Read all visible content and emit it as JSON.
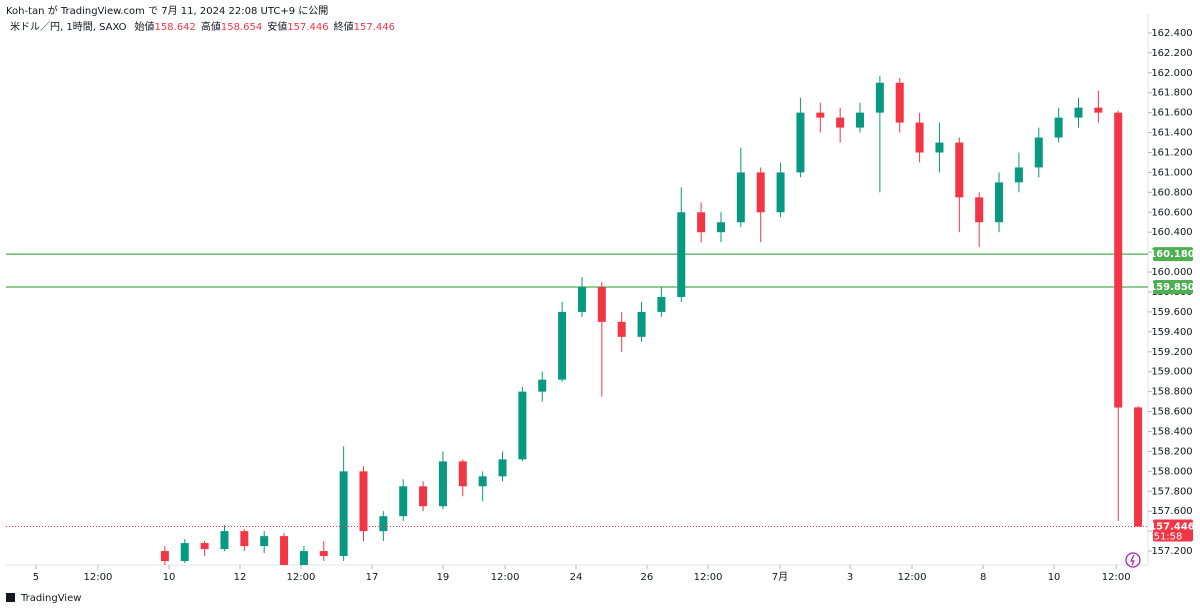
{
  "header": "Koh-tan が TradingView.com で 7月 11, 2024 22:08 UTC+9 に公開",
  "footer": "TradingView",
  "chart_data": {
    "type": "candlestick",
    "title": "米ドル／円, 1時間, SAXO",
    "legend_labels": [
      "始値",
      "高値",
      "安値",
      "終値"
    ],
    "up_color": "#089981",
    "down_color": "#f23645",
    "x": [
      8,
      9,
      10,
      11,
      12,
      13,
      14,
      15,
      16,
      17,
      18,
      19,
      20,
      21,
      22,
      23,
      24,
      25,
      26,
      27,
      28,
      29,
      30,
      31,
      32,
      33,
      34,
      35,
      36,
      37,
      38,
      39,
      40,
      41,
      42,
      43,
      44,
      45,
      46,
      47,
      48,
      49,
      50,
      51,
      52,
      53,
      54,
      55,
      56,
      57
    ],
    "open": [
      157.2,
      157.1,
      157.28,
      157.22,
      157.4,
      157.25,
      157.35,
      157.0,
      157.2,
      157.15,
      158.0,
      157.4,
      157.55,
      157.85,
      157.65,
      158.1,
      157.85,
      157.95,
      158.12,
      158.8,
      158.92,
      159.6,
      159.85,
      159.5,
      159.35,
      159.6,
      159.75,
      160.6,
      160.4,
      160.5,
      161.0,
      160.6,
      161.0,
      161.6,
      161.55,
      161.45,
      161.6,
      161.9,
      161.5,
      161.2,
      161.3,
      160.75,
      160.5,
      160.9,
      161.05,
      161.35,
      161.55,
      161.65,
      161.6,
      158.642
    ],
    "high": [
      157.25,
      157.32,
      157.3,
      157.46,
      157.42,
      157.4,
      157.38,
      157.25,
      157.3,
      158.25,
      158.05,
      157.6,
      157.92,
      157.9,
      158.2,
      158.12,
      158.0,
      158.2,
      158.85,
      159.0,
      159.7,
      159.95,
      159.9,
      159.6,
      159.7,
      159.85,
      160.85,
      160.7,
      160.6,
      161.25,
      161.05,
      161.1,
      161.75,
      161.7,
      161.65,
      161.7,
      161.97,
      161.95,
      161.6,
      161.5,
      161.35,
      160.8,
      161.0,
      161.2,
      161.45,
      161.65,
      161.75,
      161.82,
      161.62,
      158.654
    ],
    "low": [
      157.05,
      157.08,
      157.15,
      157.2,
      157.2,
      157.18,
      156.95,
      156.98,
      157.1,
      157.1,
      157.3,
      157.3,
      157.5,
      157.6,
      157.62,
      157.75,
      157.7,
      157.9,
      158.1,
      158.7,
      158.9,
      159.55,
      158.75,
      159.2,
      159.3,
      159.55,
      159.7,
      160.3,
      160.3,
      160.45,
      160.3,
      160.55,
      160.95,
      161.4,
      161.3,
      161.4,
      160.8,
      161.4,
      161.1,
      161.0,
      160.4,
      160.25,
      160.4,
      160.8,
      160.95,
      161.3,
      161.45,
      161.5,
      157.5,
      157.446
    ],
    "close": [
      157.1,
      157.28,
      157.22,
      157.4,
      157.25,
      157.35,
      157.0,
      157.2,
      157.15,
      158.0,
      157.4,
      157.55,
      157.85,
      157.65,
      158.1,
      157.85,
      157.95,
      158.12,
      158.8,
      158.92,
      159.6,
      159.85,
      159.5,
      159.35,
      159.6,
      159.75,
      160.6,
      160.4,
      160.5,
      161.0,
      160.6,
      161.0,
      161.6,
      161.55,
      161.45,
      161.6,
      161.9,
      161.5,
      161.2,
      161.3,
      160.75,
      160.5,
      160.9,
      161.05,
      161.35,
      161.55,
      161.65,
      161.6,
      158.64,
      157.446
    ],
    "xlim": [
      0,
      57.5
    ],
    "xticks": [
      {
        "value": 1.51,
        "label": "5"
      },
      {
        "value": 4.63,
        "label": "12:00"
      },
      {
        "value": 8.21,
        "label": "10"
      },
      {
        "value": 11.78,
        "label": "12"
      },
      {
        "value": 14.85,
        "label": "12:00"
      },
      {
        "value": 18.43,
        "label": "17"
      },
      {
        "value": 22.0,
        "label": "19"
      },
      {
        "value": 25.13,
        "label": "12:00"
      },
      {
        "value": 28.7,
        "label": "24"
      },
      {
        "value": 32.27,
        "label": "26"
      },
      {
        "value": 35.35,
        "label": "12:00"
      },
      {
        "value": 38.97,
        "label": "7月"
      },
      {
        "value": 42.5,
        "label": "3"
      },
      {
        "value": 45.62,
        "label": "12:00"
      },
      {
        "value": 49.2,
        "label": "8"
      },
      {
        "value": 52.77,
        "label": "10"
      },
      {
        "value": 55.9,
        "label": "12:00"
      }
    ],
    "ylim": [
      157.06,
      162.59
    ],
    "yticks": [
      {
        "value": 157.2,
        "label": "157.200"
      },
      {
        "value": 157.4,
        "label": "157.400"
      },
      {
        "value": 157.6,
        "label": "157.600"
      },
      {
        "value": 157.8,
        "label": "157.800"
      },
      {
        "value": 158.0,
        "label": "158.000"
      },
      {
        "value": 158.2,
        "label": "158.200"
      },
      {
        "value": 158.4,
        "label": "158.400"
      },
      {
        "value": 158.6,
        "label": "158.600"
      },
      {
        "value": 158.8,
        "label": "158.800"
      },
      {
        "value": 159.0,
        "label": "159.000"
      },
      {
        "value": 159.2,
        "label": "159.200"
      },
      {
        "value": 159.4,
        "label": "159.400"
      },
      {
        "value": 159.6,
        "label": "159.600"
      },
      {
        "value": 159.8,
        "label": "159.800"
      },
      {
        "value": 160.0,
        "label": "160.000"
      },
      {
        "value": 160.2,
        "label": "160.200"
      },
      {
        "value": 160.4,
        "label": "160.400"
      },
      {
        "value": 160.6,
        "label": "160.600"
      },
      {
        "value": 160.8,
        "label": "160.800"
      },
      {
        "value": 161.0,
        "label": "161.000"
      },
      {
        "value": 161.2,
        "label": "161.200"
      },
      {
        "value": 161.4,
        "label": "161.400"
      },
      {
        "value": 161.6,
        "label": "161.600"
      },
      {
        "value": 161.8,
        "label": "161.800"
      },
      {
        "value": 162.0,
        "label": "162.000"
      },
      {
        "value": 162.2,
        "label": "162.200"
      },
      {
        "value": 162.4,
        "label": "162.400"
      }
    ],
    "hlines": [
      {
        "value": 160.18,
        "label": "160.180"
      },
      {
        "value": 159.85,
        "label": "159.850"
      }
    ],
    "hline_color": "#4caf50",
    "countdown": "51:58"
  }
}
